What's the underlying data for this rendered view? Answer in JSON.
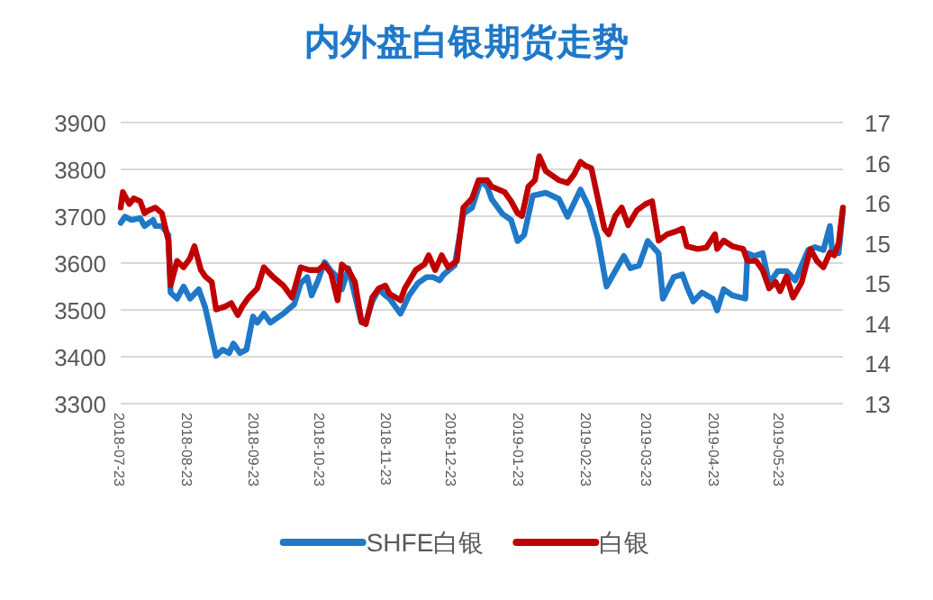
{
  "chart_data": {
    "type": "line",
    "title": "内外盘白银期货走势",
    "xlim": [
      "2018-07-23",
      "2019-06-21"
    ],
    "xticks": [
      "2018-07-23",
      "2018-08-23",
      "2018-09-23",
      "2018-10-23",
      "2018-11-23",
      "2018-12-23",
      "2019-01-23",
      "2019-02-23",
      "2019-03-23",
      "2019-04-23",
      "2019-05-23"
    ],
    "ylim": [
      3300,
      3900
    ],
    "yticks": [
      3300,
      3400,
      3500,
      3600,
      3700,
      3800,
      3900
    ],
    "y2lim": [
      13,
      17
    ],
    "y2ticks": [
      13,
      {
        "value": 13.571,
        "label": "14"
      },
      {
        "value": 14.143,
        "label": "14"
      },
      {
        "value": 14.714,
        "label": "15"
      },
      {
        "value": 15.286,
        "label": "15"
      },
      {
        "value": 15.857,
        "label": "16"
      },
      {
        "value": 16.429,
        "label": "16"
      },
      17
    ],
    "grid": "y",
    "legend": "bottom",
    "line_style": "solid",
    "series": [
      {
        "name": "SHFE白银",
        "color": "#1f78c8",
        "x": [
          "2018-07-23",
          "2018-07-25",
          "2018-07-28",
          "2018-08-01",
          "2018-08-03",
          "2018-08-07",
          "2018-08-08",
          "2018-08-11",
          "2018-08-14",
          "2018-08-15",
          "2018-08-18",
          "2018-08-21",
          "2018-08-24",
          "2018-08-28",
          "2018-08-31",
          "2018-09-05",
          "2018-09-08",
          "2018-09-11",
          "2018-09-13",
          "2018-09-16",
          "2018-09-19",
          "2018-09-22",
          "2018-09-24",
          "2018-09-27",
          "2018-09-30",
          "2018-10-06",
          "2018-10-11",
          "2018-10-14",
          "2018-10-17",
          "2018-10-19",
          "2018-10-22",
          "2018-10-25",
          "2018-10-28",
          "2018-10-31",
          "2018-11-02",
          "2018-11-05",
          "2018-11-08",
          "2018-11-11",
          "2018-11-13",
          "2018-11-16",
          "2018-11-19",
          "2018-11-22",
          "2018-11-24",
          "2018-11-29",
          "2018-12-03",
          "2018-12-07",
          "2018-12-11",
          "2018-12-14",
          "2018-12-17",
          "2018-12-19",
          "2018-12-24",
          "2018-12-28",
          "2019-01-01",
          "2019-01-05",
          "2019-01-08",
          "2019-01-10",
          "2019-01-15",
          "2019-01-19",
          "2019-01-22",
          "2019-01-25",
          "2019-01-29",
          "2019-02-04",
          "2019-02-10",
          "2019-02-14",
          "2019-02-20",
          "2019-02-24",
          "2019-02-28",
          "2019-03-04",
          "2019-03-08",
          "2019-03-12",
          "2019-03-15",
          "2019-03-19",
          "2019-03-23",
          "2019-03-28",
          "2019-03-30",
          "2019-04-04",
          "2019-04-08",
          "2019-04-10",
          "2019-04-13",
          "2019-04-17",
          "2019-04-22",
          "2019-04-24",
          "2019-04-27",
          "2019-05-01",
          "2019-05-07",
          "2019-05-08",
          "2019-05-11",
          "2019-05-15",
          "2019-05-18",
          "2019-05-22",
          "2019-05-26",
          "2019-05-30",
          "2019-06-05",
          "2019-06-08",
          "2019-06-12",
          "2019-06-15",
          "2019-06-16",
          "2019-06-19",
          "2019-06-21"
        ],
        "values": [
          3686,
          3699,
          3692,
          3696,
          3679,
          3692,
          3679,
          3679,
          3660,
          3537,
          3524,
          3550,
          3524,
          3544,
          3505,
          3402,
          3415,
          3408,
          3428,
          3408,
          3415,
          3486,
          3473,
          3492,
          3473,
          3492,
          3512,
          3557,
          3570,
          3531,
          3563,
          3602,
          3583,
          3570,
          3544,
          3589,
          3531,
          3473,
          3473,
          3518,
          3544,
          3531,
          3524,
          3492,
          3531,
          3557,
          3570,
          3570,
          3563,
          3576,
          3595,
          3705,
          3718,
          3776,
          3763,
          3737,
          3705,
          3692,
          3647,
          3660,
          3744,
          3750,
          3737,
          3699,
          3757,
          3718,
          3653,
          3550,
          3583,
          3615,
          3589,
          3595,
          3647,
          3621,
          3524,
          3570,
          3576,
          3550,
          3518,
          3537,
          3524,
          3499,
          3544,
          3531,
          3524,
          3621,
          3615,
          3621,
          3557,
          3583,
          3583,
          3563,
          3628,
          3634,
          3628,
          3679,
          3628,
          3621,
          3712
        ]
      },
      {
        "name": "白银",
        "color": "#c00000",
        "axis": "y2",
        "x": [
          "2018-07-23",
          "2018-07-24",
          "2018-07-27",
          "2018-07-29",
          "2018-08-01",
          "2018-08-03",
          "2018-08-05",
          "2018-08-08",
          "2018-08-11",
          "2018-08-14",
          "2018-08-15",
          "2018-08-18",
          "2018-08-21",
          "2018-08-24",
          "2018-08-26",
          "2018-08-29",
          "2018-08-31",
          "2018-09-03",
          "2018-09-05",
          "2018-09-09",
          "2018-09-12",
          "2018-09-15",
          "2018-09-17",
          "2018-09-20",
          "2018-09-24",
          "2018-09-27",
          "2018-10-01",
          "2018-10-06",
          "2018-10-10",
          "2018-10-14",
          "2018-10-18",
          "2018-10-22",
          "2018-10-25",
          "2018-10-28",
          "2018-10-31",
          "2018-11-02",
          "2018-11-05",
          "2018-11-08",
          "2018-11-11",
          "2018-11-13",
          "2018-11-16",
          "2018-11-19",
          "2018-11-22",
          "2018-11-24",
          "2018-11-29",
          "2018-12-01",
          "2018-12-06",
          "2018-12-10",
          "2018-12-12",
          "2018-12-15",
          "2018-12-18",
          "2018-12-21",
          "2018-12-25",
          "2018-12-28",
          "2019-01-01",
          "2019-01-04",
          "2019-01-08",
          "2019-01-10",
          "2019-01-13",
          "2019-01-16",
          "2019-01-19",
          "2019-01-22",
          "2019-01-24",
          "2019-01-27",
          "2019-01-30",
          "2019-02-01",
          "2019-02-04",
          "2019-02-10",
          "2019-02-14",
          "2019-02-17",
          "2019-02-20",
          "2019-02-22",
          "2019-02-25",
          "2019-02-28",
          "2019-03-03",
          "2019-03-05",
          "2019-03-08",
          "2019-03-11",
          "2019-03-14",
          "2019-03-18",
          "2019-03-22",
          "2019-03-25",
          "2019-03-28",
          "2019-04-01",
          "2019-04-05",
          "2019-04-08",
          "2019-04-10",
          "2019-04-15",
          "2019-04-19",
          "2019-04-23",
          "2019-04-24",
          "2019-04-27",
          "2019-05-01",
          "2019-05-06",
          "2019-05-08",
          "2019-05-12",
          "2019-05-15",
          "2019-05-18",
          "2019-05-21",
          "2019-05-23",
          "2019-05-26",
          "2019-05-29",
          "2019-06-02",
          "2019-06-06",
          "2019-06-09",
          "2019-06-12",
          "2019-06-15",
          "2019-06-17",
          "2019-06-19",
          "2019-06-21"
        ],
        "values": [
          15.79,
          16.01,
          15.84,
          15.92,
          15.88,
          15.71,
          15.75,
          15.79,
          15.71,
          15.32,
          14.68,
          15.03,
          14.94,
          15.07,
          15.24,
          14.9,
          14.81,
          14.73,
          14.34,
          14.38,
          14.43,
          14.26,
          14.38,
          14.51,
          14.64,
          14.94,
          14.81,
          14.68,
          14.51,
          14.94,
          14.9,
          14.9,
          14.98,
          14.85,
          14.47,
          14.98,
          14.9,
          14.73,
          14.17,
          14.13,
          14.51,
          14.64,
          14.68,
          14.56,
          14.47,
          14.64,
          14.9,
          14.98,
          15.11,
          14.9,
          15.11,
          14.94,
          15.03,
          15.79,
          15.92,
          16.18,
          16.18,
          16.09,
          16.05,
          16.01,
          15.88,
          15.71,
          15.67,
          16.09,
          16.18,
          16.52,
          16.31,
          16.18,
          16.14,
          16.26,
          16.44,
          16.39,
          16.35,
          15.92,
          15.49,
          15.41,
          15.67,
          15.79,
          15.54,
          15.75,
          15.84,
          15.88,
          15.32,
          15.41,
          15.45,
          15.49,
          15.24,
          15.2,
          15.22,
          15.41,
          15.2,
          15.32,
          15.24,
          15.2,
          15.03,
          15.03,
          14.9,
          14.64,
          14.73,
          14.6,
          14.81,
          14.51,
          14.73,
          15.2,
          15.03,
          14.94,
          15.15,
          15.11,
          15.28,
          15.79
        ]
      }
    ]
  }
}
